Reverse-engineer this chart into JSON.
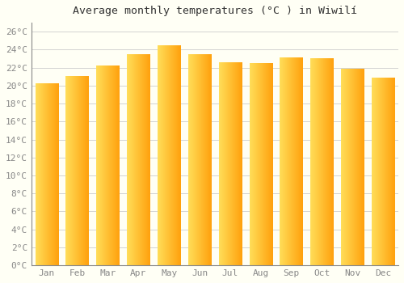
{
  "title": "Average monthly temperatures (°C ) in Wiwilí",
  "months": [
    "Jan",
    "Feb",
    "Mar",
    "Apr",
    "May",
    "Jun",
    "Jul",
    "Aug",
    "Sep",
    "Oct",
    "Nov",
    "Dec"
  ],
  "values": [
    20.2,
    21.0,
    22.2,
    23.4,
    24.4,
    23.4,
    22.5,
    22.4,
    23.1,
    23.0,
    21.8,
    20.8
  ],
  "bar_color_left": "#FFD966",
  "bar_color_right": "#FFA020",
  "ylim": [
    0,
    27
  ],
  "ytick_max": 26,
  "ytick_step": 2,
  "background_color": "#F5F5DC",
  "plot_bg_color": "#FFFFF0",
  "grid_color": "#CCCCCC",
  "title_fontsize": 9.5,
  "tick_fontsize": 8,
  "title_color": "#333333",
  "tick_color": "#888888"
}
